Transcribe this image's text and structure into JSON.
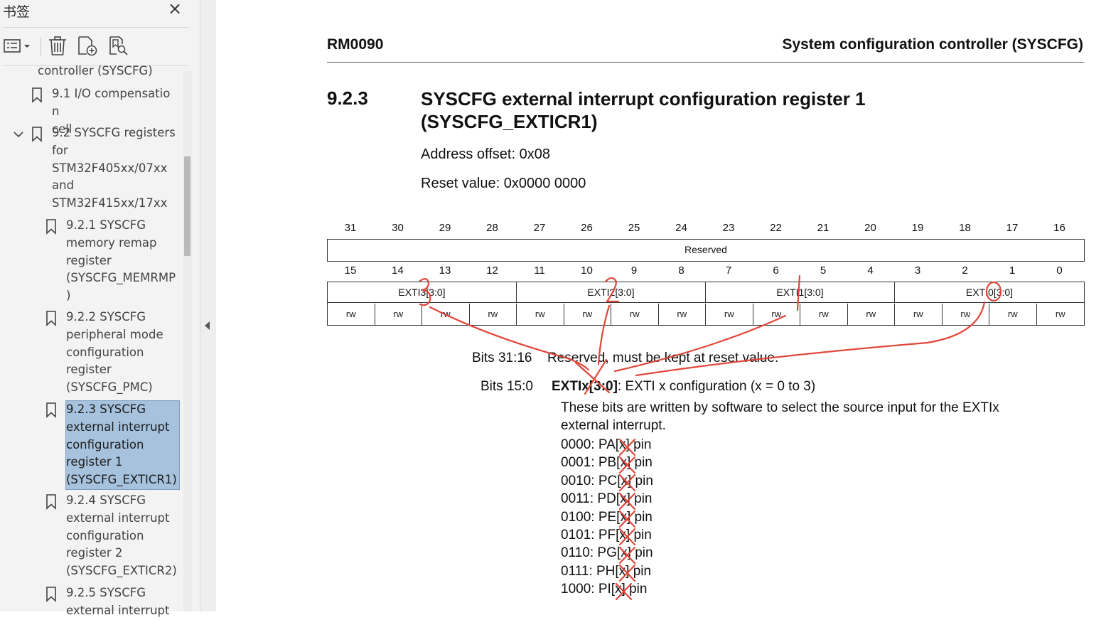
{
  "panel": {
    "title": "书签",
    "close_icon": "×",
    "toolbar": {
      "options_icon": "bookmark-options-icon",
      "delete_icon": "trash-icon",
      "add_icon": "add-bookmark-icon",
      "find_icon": "find-bookmark-icon"
    },
    "items": [
      {
        "label": "controller (SYSCFG)"
      },
      {
        "label": "9.1 I/O compensation\ncell"
      },
      {
        "label": "9.2 SYSCFG registers\nfor\nSTM32F405xx/07xx\nand\nSTM32F415xx/17xx"
      },
      {
        "label": "9.2.1 SYSCFG\nmemory remap\nregister\n(SYSCFG_MEMRMP\n)"
      },
      {
        "label": "9.2.2 SYSCFG\nperipheral mode\nconfiguration\nregister\n(SYSCFG_PMC)"
      },
      {
        "label": "9.2.3 SYSCFG\nexternal interrupt\nconfiguration\nregister 1\n(SYSCFG_EXTICR1)"
      },
      {
        "label": "9.2.4 SYSCFG\nexternal interrupt\nconfiguration\nregister 2\n(SYSCFG_EXTICR2)"
      },
      {
        "label": "9.2.5 SYSCFG\nexternal interrupt"
      }
    ]
  },
  "doc": {
    "header_left": "RM0090",
    "header_right": "System configuration controller (SYSCFG)",
    "section_number": "9.2.3",
    "section_title": "SYSCFG external interrupt configuration register 1 (SYSCFG_EXTICR1)",
    "address_offset": "Address offset: 0x08",
    "reset_value": "Reset value: 0x0000 0000",
    "bits_high": [
      "31",
      "30",
      "29",
      "28",
      "27",
      "26",
      "25",
      "24",
      "23",
      "22",
      "21",
      "20",
      "19",
      "18",
      "17",
      "16"
    ],
    "reserved_label": "Reserved",
    "bits_low": [
      "15",
      "14",
      "13",
      "12",
      "11",
      "10",
      "9",
      "8",
      "7",
      "6",
      "5",
      "4",
      "3",
      "2",
      "1",
      "0"
    ],
    "fields": [
      "EXTI3[3:0]",
      "EXTI2[3:0]",
      "EXTI1[3:0]",
      "EXTI0[3:0]"
    ],
    "access": "rw",
    "bits_31_16_label": "Bits 31:16",
    "bits_31_16_text": "Reserved, must be kept at reset value.",
    "bits_15_0_label": "Bits 15:0",
    "bits_15_0_field": "EXTIx[3:0]",
    "bits_15_0_text": ": EXTI x configuration (x = 0 to 3)",
    "desc_1": "These bits are written by software to select the source input for the EXTIx",
    "desc_2": "external interrupt.",
    "pin_options": [
      "0000: PA[x] pin",
      "0001: PB[x] pin",
      "0010: PC[x] pin",
      "0011: PD[x] pin",
      "0100: PE[x] pin",
      "0101: PF[x] pin",
      "0110: PG[x] pin",
      "0111: PH[x] pin",
      "1000: PI[x] pin"
    ],
    "annotations": {
      "digits": [
        "3",
        "2",
        "1",
        "0"
      ],
      "color": "#e0473a"
    }
  }
}
